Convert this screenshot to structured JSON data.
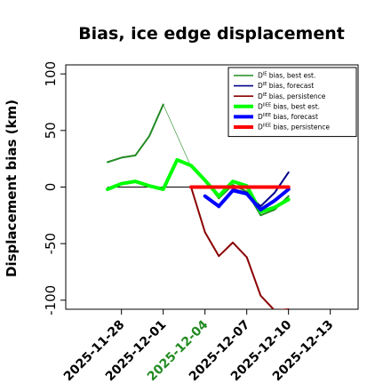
{
  "chart_data": {
    "type": "line",
    "title": "Bias, ice edge displacement",
    "ylabel": "Displacement bias (km)",
    "xlabel": "",
    "ylim": [
      -108,
      108
    ],
    "xlim": [
      "2025-11-24",
      "2025-12-15"
    ],
    "yticks": [
      -100,
      -50,
      0,
      50,
      100
    ],
    "xticks": [
      {
        "date": "2025-11-28",
        "label": "2025-11-28",
        "color": "#000000"
      },
      {
        "date": "2025-12-01",
        "label": "2025-12-01",
        "color": "#000000"
      },
      {
        "date": "2025-12-04",
        "label": "2025-12-04",
        "color": "#228B22"
      },
      {
        "date": "2025-12-07",
        "label": "2025-12-07",
        "color": "#000000"
      },
      {
        "date": "2025-12-10",
        "label": "2025-12-10",
        "color": "#000000"
      },
      {
        "date": "2025-12-13",
        "label": "2025-12-13",
        "color": "#000000"
      }
    ],
    "zero_line": {
      "y": 0,
      "x_start": "2025-11-27",
      "x_end": "2025-12-10",
      "color": "#000000"
    },
    "series": [
      {
        "name": "DIE bias, best est.",
        "color": "#228B22",
        "width": 2,
        "points": [
          [
            "2025-11-27",
            22
          ],
          [
            "2025-11-28",
            26
          ],
          [
            "2025-11-29",
            28
          ],
          [
            "2025-11-30",
            45
          ],
          [
            "2025-12-01",
            73
          ]
        ]
      },
      {
        "name": "DIE bias, best est. (link)",
        "color": "#228B22",
        "width": 0.6,
        "legend": false,
        "points": [
          [
            "2025-12-01",
            73
          ],
          [
            "2025-12-03",
            18
          ]
        ]
      },
      {
        "name": "DIE bias, best est. (cont.)",
        "color": "#228B22",
        "width": 2,
        "legend": false,
        "points": [
          [
            "2025-12-03",
            18
          ],
          [
            "2025-12-04",
            6
          ],
          [
            "2025-12-05",
            -10
          ],
          [
            "2025-12-06",
            2
          ],
          [
            "2025-12-07",
            -4
          ],
          [
            "2025-12-08",
            -25
          ],
          [
            "2025-12-09",
            -20
          ],
          [
            "2025-12-10",
            -8
          ]
        ]
      },
      {
        "name": "DIE bias, forecast",
        "color": "#00008B",
        "width": 2,
        "points": [
          [
            "2025-12-04",
            -8
          ],
          [
            "2025-12-05",
            -18
          ],
          [
            "2025-12-06",
            -2
          ],
          [
            "2025-12-07",
            -5
          ],
          [
            "2025-12-08",
            -17
          ],
          [
            "2025-12-09",
            -5
          ],
          [
            "2025-12-10",
            13
          ]
        ]
      },
      {
        "name": "DIE bias, persistence",
        "color": "#8B0000",
        "width": 2,
        "points": [
          [
            "2025-12-03",
            0
          ],
          [
            "2025-12-04",
            -40
          ],
          [
            "2025-12-05",
            -61
          ],
          [
            "2025-12-06",
            -49
          ],
          [
            "2025-12-07",
            -62
          ],
          [
            "2025-12-08",
            -96
          ],
          [
            "2025-12-09",
            -109
          ],
          [
            "2025-12-10",
            -108
          ]
        ]
      },
      {
        "name": "DIIEE bias, best est.",
        "color": "#00FF00",
        "width": 4,
        "points": [
          [
            "2025-11-27",
            -2
          ],
          [
            "2025-11-28",
            3
          ],
          [
            "2025-11-29",
            5
          ],
          [
            "2025-11-30",
            1
          ],
          [
            "2025-12-01",
            -2
          ],
          [
            "2025-12-02",
            24
          ],
          [
            "2025-12-03",
            19
          ],
          [
            "2025-12-04",
            6
          ],
          [
            "2025-12-05",
            -8
          ],
          [
            "2025-12-06",
            5
          ],
          [
            "2025-12-07",
            1
          ],
          [
            "2025-12-08",
            -22
          ],
          [
            "2025-12-09",
            -18
          ],
          [
            "2025-12-10",
            -11
          ]
        ]
      },
      {
        "name": "DIIEE bias, forecast",
        "color": "#0000FF",
        "width": 4,
        "points": [
          [
            "2025-12-04",
            -8
          ],
          [
            "2025-12-05",
            -17
          ],
          [
            "2025-12-06",
            -3
          ],
          [
            "2025-12-07",
            -6
          ],
          [
            "2025-12-08",
            -20
          ],
          [
            "2025-12-09",
            -12
          ],
          [
            "2025-12-10",
            -2
          ]
        ]
      },
      {
        "name": "DIIEE bias, persistence",
        "color": "#FF0000",
        "width": 4,
        "points": [
          [
            "2025-12-03",
            0
          ],
          [
            "2025-12-04",
            0
          ],
          [
            "2025-12-05",
            0
          ],
          [
            "2025-12-06",
            0
          ],
          [
            "2025-12-07",
            0
          ],
          [
            "2025-12-08",
            0
          ],
          [
            "2025-12-09",
            0
          ],
          [
            "2025-12-10",
            0
          ]
        ]
      }
    ],
    "legend": {
      "position": "top-right",
      "entries": [
        {
          "base": "D",
          "sup": "IE",
          "text": " bias, best est.",
          "color": "#228B22",
          "width": 1.6
        },
        {
          "base": "D",
          "sup": "IE",
          "text": " bias, forecast",
          "color": "#00008B",
          "width": 1.6
        },
        {
          "base": "D",
          "sup": "IE",
          "text": " bias, persistence",
          "color": "#8B0000",
          "width": 1.6
        },
        {
          "base": "D",
          "sup": "IIEE",
          "text": " bias, best est.",
          "color": "#00FF00",
          "width": 4
        },
        {
          "base": "D",
          "sup": "IIEE",
          "text": " bias, forecast",
          "color": "#0000FF",
          "width": 4
        },
        {
          "base": "D",
          "sup": "IIEE",
          "text": " bias, persistence",
          "color": "#FF0000",
          "width": 4
        }
      ]
    },
    "grid": false
  }
}
